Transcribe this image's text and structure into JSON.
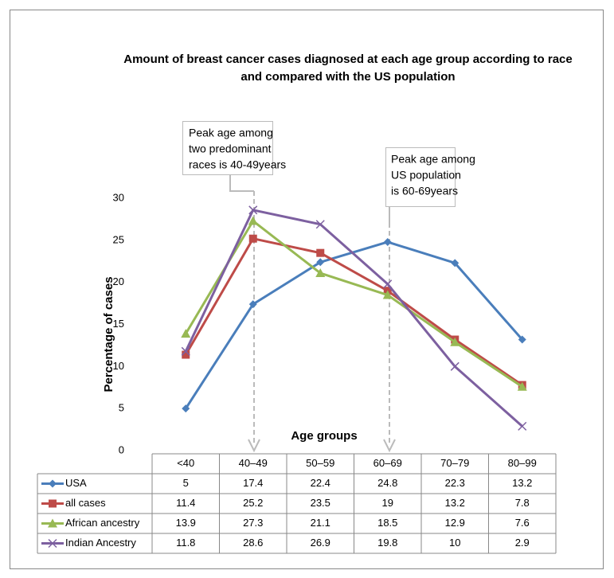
{
  "chart_data": {
    "type": "line",
    "title": [
      "Amount of breast cancer cases diagnosed at each age group according to race",
      "and compared with the US population"
    ],
    "x_label": "Age groups",
    "y_label": "Percentage of cases",
    "categories": [
      "<40",
      "40–49",
      "50–59",
      "60–69",
      "70–79",
      "80–99"
    ],
    "ylim": [
      0,
      30
    ],
    "yticks": [
      0,
      5,
      10,
      15,
      20,
      25,
      30
    ],
    "grid": false,
    "series": [
      {
        "name": "USA",
        "color": "#4a7ebb",
        "marker": "diamond",
        "values": [
          5,
          17.4,
          22.4,
          24.8,
          22.3,
          13.2
        ]
      },
      {
        "name": "all cases",
        "color": "#be4b48",
        "marker": "square",
        "values": [
          11.4,
          25.2,
          23.5,
          19,
          13.2,
          7.8
        ]
      },
      {
        "name": "African ancestry",
        "color": "#98b954",
        "marker": "triangle",
        "values": [
          13.9,
          27.3,
          21.1,
          18.5,
          12.9,
          7.6
        ]
      },
      {
        "name": "Indian Ancestry",
        "color": "#7d60a0",
        "marker": "x",
        "values": [
          11.8,
          28.6,
          26.9,
          19.8,
          10,
          2.9
        ]
      }
    ],
    "annotations": [
      {
        "lines": [
          "Peak age among",
          "two predominant",
          "races is 40-49years"
        ]
      },
      {
        "lines": [
          "Peak age among",
          "US population",
          "is 60-69years"
        ]
      }
    ]
  }
}
